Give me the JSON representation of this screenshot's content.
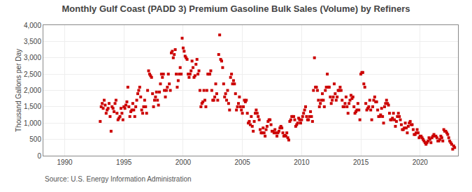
{
  "chart_data": {
    "type": "scatter",
    "title": "Monthly Gulf Coast (PADD 3) Premium Gasoline Bulk Sales (Volume) by Refiners",
    "ylabel": "Thousand Gallons per Day",
    "annotations": [
      "Source: U.S. Energy Information Administration"
    ],
    "color": "#cc0000",
    "marker": "square",
    "grid": true,
    "xlim": [
      1988.2,
      2023.2
    ],
    "xticks": [
      1990,
      1995,
      2000,
      2005,
      2010,
      2015,
      2020
    ],
    "ylim": [
      0,
      4000
    ],
    "yticks": [
      0,
      500,
      {
        "value": 1000,
        "label": "1,000"
      },
      {
        "value": 1500,
        "label": "1,500"
      },
      {
        "value": 2000,
        "label": "2,000"
      },
      {
        "value": 2500,
        "label": "2,500"
      },
      {
        "value": 3000,
        "label": "3,000"
      },
      {
        "value": 3500,
        "label": "3,500"
      },
      {
        "value": 4000,
        "label": "4,000"
      }
    ],
    "x": [
      1993.0,
      1993.083,
      1993.167,
      1993.25,
      1993.333,
      1993.417,
      1993.5,
      1993.583,
      1993.667,
      1993.75,
      1993.833,
      1993.917,
      1994.0,
      1994.083,
      1994.167,
      1994.25,
      1994.333,
      1994.417,
      1994.5,
      1994.583,
      1994.667,
      1994.75,
      1994.833,
      1994.917,
      1995.0,
      1995.083,
      1995.167,
      1995.25,
      1995.333,
      1995.417,
      1995.5,
      1995.583,
      1995.667,
      1995.75,
      1995.833,
      1995.917,
      1996.0,
      1996.083,
      1996.167,
      1996.25,
      1996.333,
      1996.417,
      1996.5,
      1996.583,
      1996.667,
      1996.75,
      1996.833,
      1996.917,
      1997.0,
      1997.083,
      1997.167,
      1997.25,
      1997.333,
      1997.417,
      1997.5,
      1997.583,
      1997.667,
      1997.75,
      1997.833,
      1997.917,
      1998.0,
      1998.083,
      1998.167,
      1998.25,
      1998.333,
      1998.417,
      1998.5,
      1998.583,
      1998.667,
      1998.75,
      1998.833,
      1998.917,
      1999.0,
      1999.083,
      1999.167,
      1999.25,
      1999.333,
      1999.417,
      1999.5,
      1999.583,
      1999.667,
      1999.75,
      1999.833,
      1999.917,
      2000.0,
      2000.083,
      2000.167,
      2000.25,
      2000.333,
      2000.417,
      2000.5,
      2000.583,
      2000.667,
      2000.75,
      2000.833,
      2000.917,
      2001.0,
      2001.083,
      2001.167,
      2001.25,
      2001.333,
      2001.417,
      2001.5,
      2001.583,
      2001.667,
      2001.75,
      2001.833,
      2001.917,
      2002.0,
      2002.083,
      2002.167,
      2002.25,
      2002.333,
      2002.417,
      2002.5,
      2002.583,
      2002.667,
      2002.75,
      2002.833,
      2002.917,
      2003.0,
      2003.083,
      2003.167,
      2003.25,
      2003.333,
      2003.417,
      2003.5,
      2003.583,
      2003.667,
      2003.75,
      2003.833,
      2003.917,
      2004.0,
      2004.083,
      2004.167,
      2004.25,
      2004.333,
      2004.417,
      2004.5,
      2004.583,
      2004.667,
      2004.75,
      2004.833,
      2004.917,
      2005.0,
      2005.083,
      2005.167,
      2005.25,
      2005.333,
      2005.417,
      2005.5,
      2005.583,
      2005.667,
      2005.75,
      2005.833,
      2005.917,
      2006.0,
      2006.083,
      2006.167,
      2006.25,
      2006.333,
      2006.417,
      2006.5,
      2006.583,
      2006.667,
      2006.75,
      2006.833,
      2006.917,
      2007.0,
      2007.083,
      2007.167,
      2007.25,
      2007.333,
      2007.417,
      2007.5,
      2007.583,
      2007.667,
      2007.75,
      2007.833,
      2007.917,
      2008.0,
      2008.083,
      2008.167,
      2008.25,
      2008.333,
      2008.417,
      2008.5,
      2008.583,
      2008.667,
      2008.75,
      2008.833,
      2008.917,
      2009.0,
      2009.083,
      2009.167,
      2009.25,
      2009.333,
      2009.417,
      2009.5,
      2009.583,
      2009.667,
      2009.75,
      2009.833,
      2009.917,
      2010.0,
      2010.083,
      2010.167,
      2010.25,
      2010.333,
      2010.417,
      2010.5,
      2010.583,
      2010.667,
      2010.75,
      2010.833,
      2010.917,
      2011.0,
      2011.083,
      2011.167,
      2011.25,
      2011.333,
      2011.417,
      2011.5,
      2011.583,
      2011.667,
      2011.75,
      2011.833,
      2011.917,
      2012.0,
      2012.083,
      2012.167,
      2012.25,
      2012.333,
      2012.417,
      2012.5,
      2012.583,
      2012.667,
      2012.75,
      2012.833,
      2012.917,
      2013.0,
      2013.083,
      2013.167,
      2013.25,
      2013.333,
      2013.417,
      2013.5,
      2013.583,
      2013.667,
      2013.75,
      2013.833,
      2013.917,
      2014.0,
      2014.083,
      2014.167,
      2014.25,
      2014.333,
      2014.417,
      2014.5,
      2014.583,
      2014.667,
      2014.75,
      2014.833,
      2014.917,
      2015.0,
      2015.083,
      2015.167,
      2015.25,
      2015.333,
      2015.417,
      2015.5,
      2015.583,
      2015.667,
      2015.75,
      2015.833,
      2015.917,
      2016.0,
      2016.083,
      2016.167,
      2016.25,
      2016.333,
      2016.417,
      2016.5,
      2016.583,
      2016.667,
      2016.75,
      2016.833,
      2016.917,
      2017.0,
      2017.083,
      2017.167,
      2017.25,
      2017.333,
      2017.417,
      2017.5,
      2017.583,
      2017.667,
      2017.75,
      2017.833,
      2017.917,
      2018.0,
      2018.083,
      2018.167,
      2018.25,
      2018.333,
      2018.417,
      2018.5,
      2018.583,
      2018.667,
      2018.75,
      2018.833,
      2018.917,
      2019.0,
      2019.083,
      2019.167,
      2019.25,
      2019.333,
      2019.417,
      2019.5,
      2019.583,
      2019.667,
      2019.75,
      2019.833,
      2019.917,
      2020.0,
      2020.083,
      2020.167,
      2020.25,
      2020.333,
      2020.417,
      2020.5,
      2020.583,
      2020.667,
      2020.75,
      2020.833,
      2020.917,
      2021.0,
      2021.083,
      2021.167,
      2021.25,
      2021.333,
      2021.417,
      2021.5,
      2021.583,
      2021.667,
      2021.75,
      2021.833,
      2021.917,
      2022.0,
      2022.083,
      2022.167,
      2022.25,
      2022.333,
      2022.417,
      2022.5,
      2022.583,
      2022.667,
      2022.75,
      2022.833,
      2022.917
    ],
    "values": [
      1050,
      1500,
      1600,
      1450,
      1700,
      1550,
      1300,
      1400,
      1450,
      1600,
      1200,
      750,
      1500,
      1450,
      1350,
      1600,
      1700,
      1300,
      1100,
      1150,
      1200,
      1450,
      1300,
      1100,
      1500,
      1450,
      1550,
      1650,
      2100,
      1500,
      1200,
      1350,
      1400,
      1600,
      1400,
      1200,
      1500,
      1700,
      1900,
      2000,
      2100,
      1800,
      1400,
      1300,
      1500,
      1700,
      1500,
      1300,
      2000,
      2600,
      2500,
      2450,
      2400,
      1900,
      1500,
      1700,
      1800,
      1950,
      1700,
      1550,
      1950,
      2200,
      2500,
      2400,
      2500,
      2000,
      1800,
      2000,
      2100,
      2500,
      2200,
      2000,
      3150,
      3200,
      3000,
      3100,
      3250,
      2500,
      2100,
      2300,
      2500,
      2700,
      2500,
      3600,
      3300,
      3200,
      3050,
      3000,
      2950,
      2500,
      2400,
      2500,
      2600,
      2900,
      2700,
      2400,
      2450,
      2800,
      2950,
      2500,
      2600,
      2000,
      1500,
      1600,
      1650,
      2000,
      1700,
      1500,
      2000,
      2500,
      2500,
      2500,
      2600,
      2000,
      1700,
      1700,
      1800,
      2200,
      1900,
      1700,
      3100,
      3700,
      2950,
      2900,
      2700,
      2200,
      1800,
      1900,
      1700,
      2000,
      1600,
      1400,
      2400,
      2500,
      2200,
      2300,
      2200,
      1900,
      1400,
      1500,
      1600,
      1800,
      1500,
      1400,
      1300,
      1500,
      1700,
      1650,
      1700,
      1300,
      1000,
      1050,
      950,
      1200,
      900,
      750,
      1050,
      1300,
      1400,
      1300,
      1200,
      1100,
      800,
      700,
      700,
      850,
      700,
      600,
      800,
      900,
      1050,
      1100,
      1100,
      950,
      750,
      750,
      700,
      800,
      700,
      600,
      700,
      750,
      850,
      900,
      850,
      700,
      600,
      620,
      600,
      700,
      550,
      480,
      1050,
      1100,
      1200,
      1200,
      1200,
      1100,
      900,
      950,
      1000,
      1150,
      1100,
      1000,
      1100,
      1200,
      1300,
      1400,
      1500,
      1200,
      1100,
      1100,
      1200,
      1350,
      1200,
      1050,
      2000,
      3000,
      2100,
      2100,
      2000,
      1700,
      1500,
      1600,
      1700,
      1900,
      1700,
      1500,
      2000,
      2100,
      2500,
      2100,
      2100,
      1800,
      1600,
      1700,
      1800,
      2200,
      1900,
      1700,
      1800,
      2000,
      2000,
      2100,
      2000,
      1700,
      1500,
      1500,
      1600,
      1800,
      1500,
      1300,
      1600,
      1700,
      1850,
      1750,
      1800,
      1500,
      1300,
      1350,
      1400,
      1600,
      1400,
      1100,
      2500,
      2550,
      2550,
      2200,
      2100,
      1600,
      1400,
      1450,
      1500,
      1700,
      1400,
      1100,
      1500,
      1700,
      1800,
      1650,
      1650,
      1400,
      1200,
      1200,
      1250,
      1450,
      1200,
      1000,
      1500,
      1600,
      1700,
      1600,
      1550,
      1300,
      1100,
      1100,
      1150,
      1300,
      1100,
      900,
      1050,
      1200,
      1300,
      1200,
      1100,
      950,
      800,
      800,
      850,
      1000,
      850,
      700,
      900,
      1000,
      1050,
      950,
      950,
      800,
      650,
      650,
      700,
      800,
      700,
      550,
      600,
      600,
      550,
      500,
      450,
      400,
      350,
      400,
      450,
      550,
      500,
      400,
      550,
      600,
      650,
      600,
      600,
      550,
      450,
      450,
      500,
      600,
      550,
      450,
      800,
      750,
      750,
      700,
      650,
      550,
      450,
      400,
      350,
      200,
      300,
      250
    ]
  }
}
